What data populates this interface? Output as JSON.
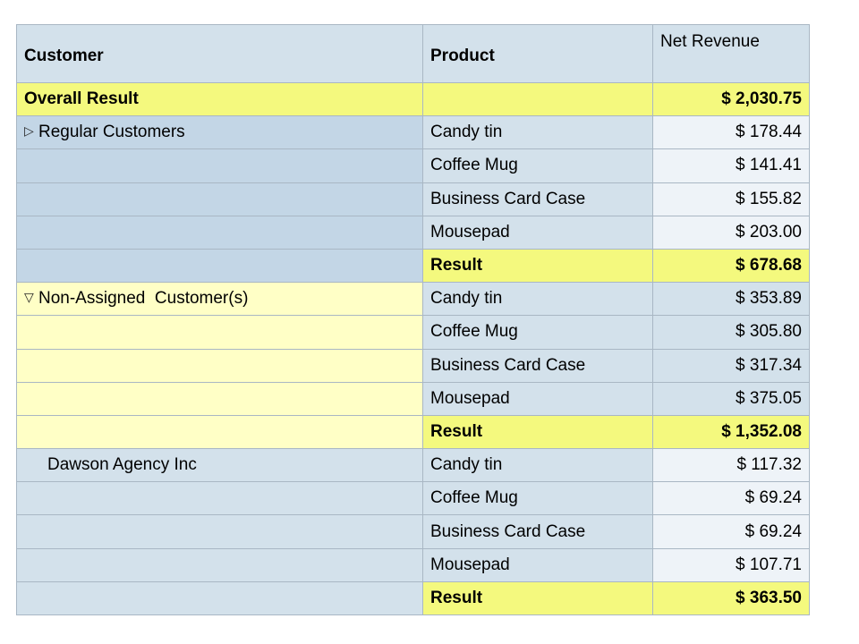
{
  "headers": {
    "customer": "Customer",
    "product": "Product",
    "net_revenue": "Net Revenue"
  },
  "overall": {
    "label": "Overall Result",
    "value": "$ 2,030.75"
  },
  "groups": [
    {
      "name": "Regular Customers",
      "expand_icon": "expand-triangle-icon",
      "rows": [
        {
          "product": "Candy tin",
          "value": "$ 178.44"
        },
        {
          "product": "Coffee Mug",
          "value": "$ 141.41"
        },
        {
          "product": "Business Card Case",
          "value": "$ 155.82"
        },
        {
          "product": "Mousepad",
          "value": "$ 203.00"
        }
      ],
      "result_label": "Result",
      "result_value": "$ 678.68"
    },
    {
      "name": "Non-Assigned  Customer(s)",
      "expand_icon": "collapse-triangle-icon",
      "rows": [
        {
          "product": "Candy tin",
          "value": "$ 353.89"
        },
        {
          "product": "Coffee Mug",
          "value": "$ 305.80"
        },
        {
          "product": "Business Card Case",
          "value": "$ 317.34"
        },
        {
          "product": "Mousepad",
          "value": "$ 375.05"
        }
      ],
      "result_label": "Result",
      "result_value": "$ 1,352.08"
    },
    {
      "name": "Dawson Agency Inc",
      "rows": [
        {
          "product": "Candy tin",
          "value": "$ 117.32"
        },
        {
          "product": "Coffee Mug",
          "value": "$ 69.24"
        },
        {
          "product": "Business Card Case",
          "value": "$ 69.24"
        },
        {
          "product": "Mousepad",
          "value": "$ 107.71"
        }
      ],
      "result_label": "Result",
      "result_value": "$ 363.50"
    }
  ]
}
